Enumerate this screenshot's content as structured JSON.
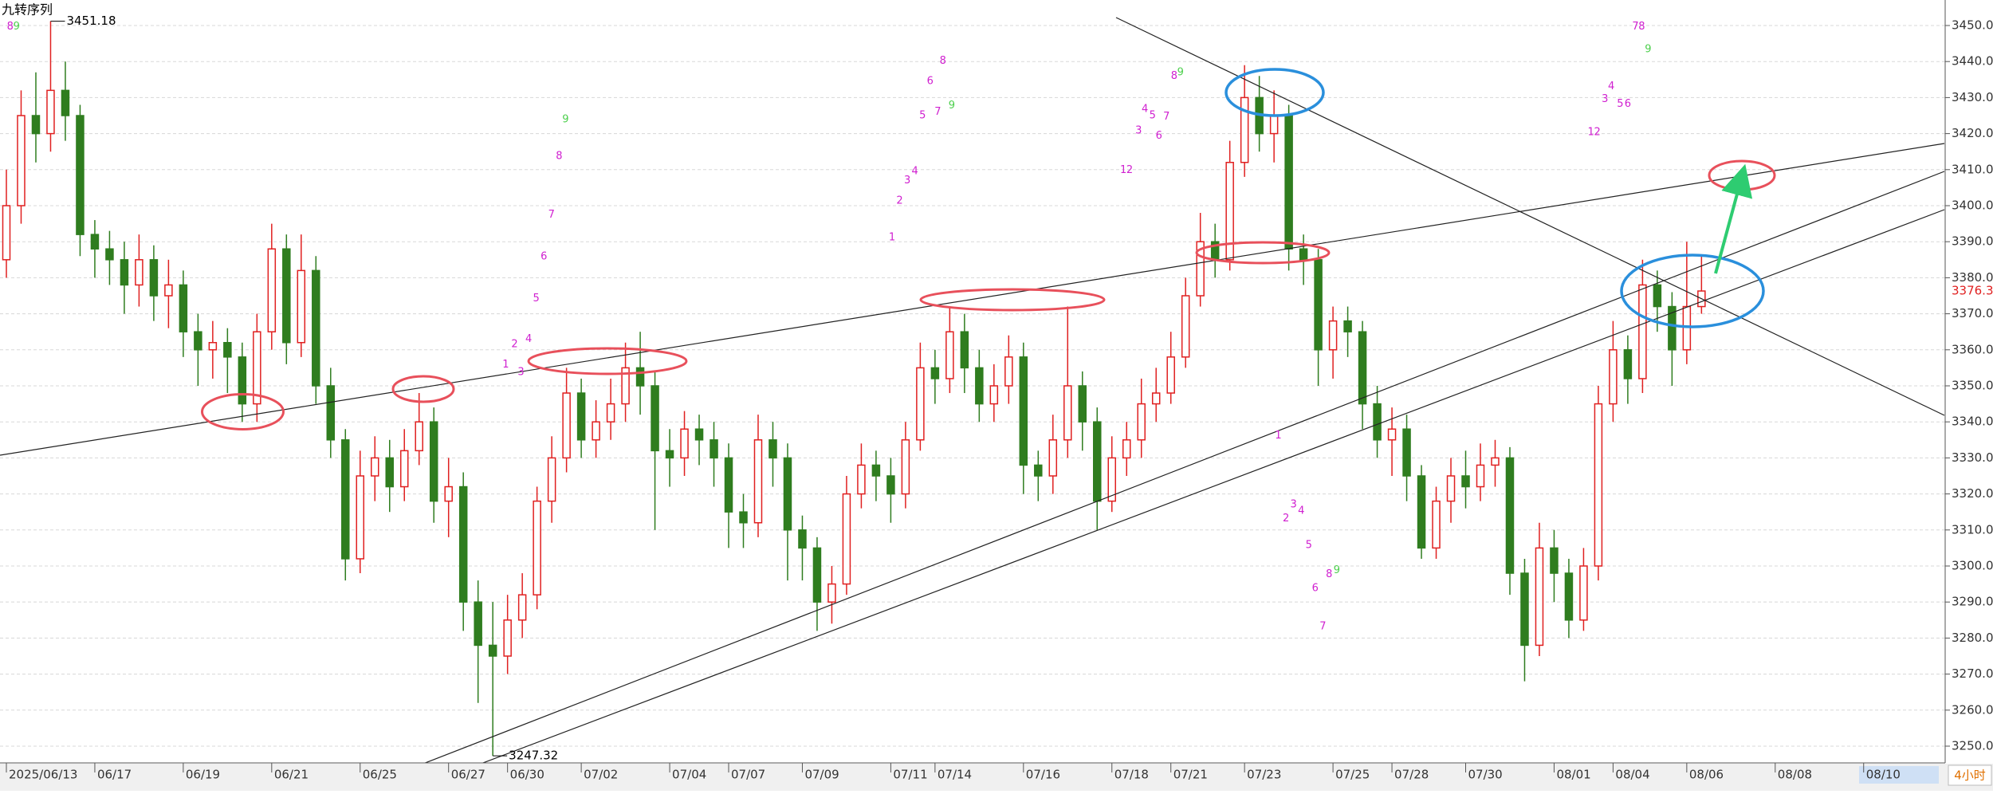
{
  "chart_data": {
    "type": "candlestick",
    "title": "九转序列",
    "categories": [
      "2025/06/13",
      null,
      null,
      null,
      null,
      null,
      "06/17",
      null,
      null,
      null,
      null,
      null,
      "06/19",
      null,
      null,
      null,
      null,
      null,
      "06/21",
      null,
      null,
      null,
      null,
      null,
      "06/25",
      null,
      null,
      null,
      null,
      null,
      "06/27",
      null,
      null,
      null,
      "06/30",
      null,
      null,
      null,
      null,
      "07/02",
      null,
      null,
      null,
      null,
      null,
      "07/04",
      null,
      null,
      null,
      "07/07",
      null,
      null,
      null,
      null,
      "07/09",
      null,
      null,
      null,
      null,
      null,
      "07/11",
      null,
      null,
      "07/14",
      null,
      null,
      null,
      null,
      null,
      "07/16",
      null,
      null,
      null,
      null,
      null,
      "07/18",
      null,
      null,
      null,
      "07/21",
      null,
      null,
      null,
      null,
      "07/23",
      null,
      null,
      null,
      null,
      null,
      "07/25",
      null,
      null,
      null,
      "07/28",
      null,
      null,
      null,
      null,
      "07/30",
      null,
      null,
      null,
      null,
      null,
      "08/01",
      null,
      null,
      null,
      "08/04",
      null,
      null,
      null,
      null,
      "08/06",
      null,
      null,
      null,
      null,
      null,
      "08/08",
      null,
      null,
      null,
      null,
      null,
      "08/10",
      null,
      null,
      null,
      null,
      null
    ],
    "open": [
      3385,
      3400,
      3425,
      3420,
      3432,
      3425,
      3392,
      3388,
      3385,
      3378,
      3385,
      3375,
      3378,
      3365,
      3360,
      3362,
      3358,
      3345,
      3365,
      3388,
      3362,
      3382,
      3350,
      3335,
      3302,
      3325,
      3330,
      3322,
      3332,
      3340,
      3318,
      3322,
      3290,
      3278,
      3275,
      3285,
      3292,
      3318,
      3330,
      3348,
      3335,
      3340,
      3345,
      3355,
      3350,
      3332,
      3330,
      3338,
      3335,
      3330,
      3315,
      3312,
      3335,
      3330,
      3310,
      3305,
      3290,
      3295,
      3320,
      3328,
      3325,
      3320,
      3335,
      3355,
      3352,
      3365,
      3355,
      3345,
      3350,
      3358,
      3328,
      3325,
      3335,
      3350,
      3340,
      3318,
      3330,
      3335,
      3345,
      3348,
      3358,
      3375,
      3390,
      3385,
      3412,
      3430,
      3420,
      3425,
      3388,
      3385,
      3360,
      3368,
      3365,
      3345,
      3335,
      3338,
      3325,
      3305,
      3318,
      3325,
      3322,
      3328,
      3330,
      3298,
      3278,
      3305,
      3298,
      3285,
      3300,
      3345,
      3360,
      3352,
      3378,
      3372,
      3360,
      3372,
      null,
      null,
      null,
      null,
      null,
      null,
      null,
      null,
      null,
      null,
      null,
      null,
      null,
      null,
      null,
      null
    ],
    "high": [
      3410,
      3432,
      3437,
      3451.18,
      3440,
      3428,
      3396,
      3393,
      3390,
      3392,
      3389,
      3385,
      3382,
      3370,
      3368,
      3366,
      3362,
      3370,
      3395,
      3392,
      3392,
      3386,
      3355,
      3338,
      3332,
      3336,
      3335,
      3338,
      3348,
      3344,
      3330,
      3326,
      3296,
      3290,
      3292,
      3298,
      3322,
      3336,
      3355,
      3352,
      3346,
      3352,
      3362,
      3365,
      3354,
      3338,
      3343,
      3342,
      3340,
      3334,
      3320,
      3342,
      3340,
      3334,
      3314,
      3308,
      3300,
      3325,
      3334,
      3332,
      3330,
      3340,
      3362,
      3360,
      3372,
      3370,
      3360,
      3356,
      3364,
      3362,
      3332,
      3342,
      3372,
      3354,
      3344,
      3336,
      3340,
      3352,
      3355,
      3365,
      3380,
      3398,
      3395,
      3418,
      3439,
      3436,
      3432,
      3428,
      3392,
      3388,
      3372,
      3372,
      3368,
      3350,
      3344,
      3342,
      3328,
      3322,
      3330,
      3332,
      3334,
      3335,
      3333,
      3302,
      3312,
      3310,
      3302,
      3305,
      3350,
      3368,
      3364,
      3385,
      3382,
      3376,
      3390,
      3386,
      null,
      null,
      null,
      null,
      null,
      null,
      null,
      null,
      null,
      null,
      null,
      null,
      null,
      null,
      null,
      null
    ],
    "low": [
      3380,
      3395,
      3412,
      3415,
      3418,
      3386,
      3380,
      3378,
      3370,
      3372,
      3368,
      3366,
      3358,
      3350,
      3352,
      3348,
      3340,
      3340,
      3360,
      3356,
      3358,
      3345,
      3330,
      3296,
      3298,
      3318,
      3315,
      3318,
      3328,
      3312,
      3308,
      3282,
      3262,
      3247.32,
      3270,
      3280,
      3288,
      3312,
      3326,
      3330,
      3330,
      3335,
      3340,
      3342,
      3310,
      3322,
      3325,
      3328,
      3322,
      3305,
      3305,
      3308,
      3322,
      3296,
      3296,
      3282,
      3284,
      3292,
      3316,
      3318,
      3312,
      3316,
      3332,
      3345,
      3348,
      3348,
      3340,
      3340,
      3345,
      3320,
      3318,
      3320,
      3330,
      3332,
      3310,
      3315,
      3325,
      3330,
      3340,
      3345,
      3355,
      3372,
      3380,
      3382,
      3408,
      3415,
      3412,
      3382,
      3378,
      3350,
      3352,
      3358,
      3338,
      3330,
      3325,
      3318,
      3302,
      3302,
      3312,
      3316,
      3318,
      3322,
      3292,
      3268,
      3275,
      3290,
      3280,
      3282,
      3296,
      3340,
      3345,
      3348,
      3365,
      3350,
      3356,
      3370,
      null,
      null,
      null,
      null,
      null,
      null,
      null,
      null,
      null,
      null,
      null,
      null,
      null,
      null,
      null,
      null
    ],
    "close": [
      3400,
      3425,
      3420,
      3432,
      3425,
      3392,
      3388,
      3385,
      3378,
      3385,
      3375,
      3378,
      3365,
      3360,
      3362,
      3358,
      3345,
      3365,
      3388,
      3362,
      3382,
      3350,
      3335,
      3302,
      3325,
      3330,
      3322,
      3332,
      3340,
      3318,
      3322,
      3290,
      3278,
      3275,
      3285,
      3292,
      3318,
      3330,
      3348,
      3335,
      3340,
      3345,
      3355,
      3350,
      3332,
      3330,
      3338,
      3335,
      3330,
      3315,
      3312,
      3335,
      3330,
      3310,
      3305,
      3290,
      3295,
      3320,
      3328,
      3325,
      3320,
      3335,
      3355,
      3352,
      3365,
      3355,
      3345,
      3350,
      3358,
      3328,
      3325,
      3335,
      3350,
      3340,
      3318,
      3330,
      3335,
      3345,
      3348,
      3358,
      3375,
      3390,
      3385,
      3412,
      3430,
      3420,
      3425,
      3388,
      3385,
      3360,
      3368,
      3365,
      3345,
      3335,
      3338,
      3325,
      3305,
      3318,
      3325,
      3322,
      3328,
      3330,
      3298,
      3278,
      3305,
      3298,
      3285,
      3300,
      3345,
      3360,
      3352,
      3378,
      3372,
      3360,
      3372,
      3376.32,
      null,
      null,
      null,
      null,
      null,
      null,
      null,
      null,
      null,
      null,
      null,
      null,
      null,
      null,
      null,
      null
    ],
    "up_color": "#e02020",
    "down_color": "#2f7d1f",
    "ylim": [
      3245.35,
      3457.08
    ],
    "yticks": [
      {
        "value": 3250,
        "label": "3250.00"
      },
      {
        "value": 3260,
        "label": "3260.00"
      },
      {
        "value": 3270,
        "label": "3270.00"
      },
      {
        "value": 3280,
        "label": "3280.00"
      },
      {
        "value": 3290,
        "label": "3290.00"
      },
      {
        "value": 3300,
        "label": "3300.00"
      },
      {
        "value": 3310,
        "label": "3310.00"
      },
      {
        "value": 3320,
        "label": "3320.00"
      },
      {
        "value": 3330,
        "label": "3330.00"
      },
      {
        "value": 3340,
        "label": "3340.00"
      },
      {
        "value": 3350,
        "label": "3350.00"
      },
      {
        "value": 3360,
        "label": "3360.00"
      },
      {
        "value": 3370,
        "label": "3370.00"
      },
      {
        "value": 3380,
        "label": "3380.00"
      },
      {
        "value": 3390,
        "label": "3390.00"
      },
      {
        "value": 3400,
        "label": "3400.00"
      },
      {
        "value": 3410,
        "label": "3410.00"
      },
      {
        "value": 3420,
        "label": "3420.00"
      },
      {
        "value": 3430,
        "label": "3430.00"
      },
      {
        "value": 3440,
        "label": "3440.00"
      },
      {
        "value": 3450,
        "label": "3450.00"
      }
    ],
    "grid": true,
    "td_labels": [
      8,
      9,
      1,
      2,
      3,
      4,
      5,
      6,
      7,
      8,
      9,
      1,
      2,
      3,
      4,
      5,
      6,
      7,
      8,
      9,
      1,
      2,
      3,
      4,
      5,
      6,
      7,
      8,
      9,
      1,
      2,
      3,
      4,
      5,
      6,
      7,
      8,
      9,
      1,
      2,
      3,
      4,
      5,
      6,
      7,
      8,
      9
    ],
    "period": "4小时"
  }
}
